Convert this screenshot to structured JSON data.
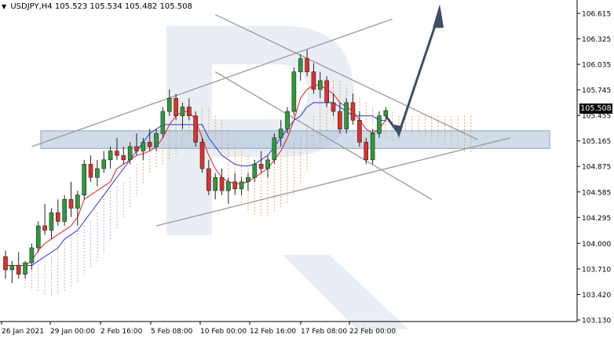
{
  "chart_data": {
    "type": "candlestick",
    "symbol": "USDJPY,H4",
    "ohlc_header": [
      "105.523",
      "105.534",
      "105.482",
      "105.508"
    ],
    "last_price": "105.508",
    "y_ticks": [
      "106.615",
      "106.325",
      "106.035",
      "105.745",
      "105.455",
      "105.165",
      "104.875",
      "104.585",
      "104.295",
      "104.000",
      "103.710",
      "103.420",
      "103.130"
    ],
    "x_ticks": [
      "26 Jan 2021",
      "29 Jan 00:00",
      "2 Feb 16:00",
      "5 Feb 08:00",
      "10 Feb 00:00",
      "12 Feb 16:00",
      "17 Feb 08:00",
      "22 Feb 00:00"
    ],
    "ylim": [
      103.13,
      106.615
    ],
    "support_zone": [
      105.08,
      105.28
    ],
    "candles": [
      [
        103.85,
        103.92,
        103.6,
        103.7
      ],
      [
        103.7,
        103.8,
        103.55,
        103.75
      ],
      [
        103.75,
        103.9,
        103.6,
        103.65
      ],
      [
        103.65,
        103.8,
        103.6,
        103.78
      ],
      [
        103.78,
        104.0,
        103.7,
        103.95
      ],
      [
        103.95,
        104.25,
        103.9,
        104.2
      ],
      [
        104.2,
        104.45,
        104.1,
        104.15
      ],
      [
        104.15,
        104.4,
        104.05,
        104.35
      ],
      [
        104.35,
        104.5,
        104.2,
        104.25
      ],
      [
        104.25,
        104.55,
        104.2,
        104.5
      ],
      [
        104.5,
        104.7,
        104.3,
        104.4
      ],
      [
        104.4,
        104.6,
        104.2,
        104.55
      ],
      [
        104.55,
        104.95,
        104.5,
        104.9
      ],
      [
        104.9,
        105.0,
        104.7,
        104.75
      ],
      [
        104.75,
        104.95,
        104.65,
        104.85
      ],
      [
        104.85,
        105.05,
        104.8,
        104.95
      ],
      [
        104.95,
        105.1,
        104.85,
        105.05
      ],
      [
        105.05,
        105.2,
        104.95,
        105.0
      ],
      [
        105.0,
        105.1,
        104.9,
        104.95
      ],
      [
        104.95,
        105.15,
        104.9,
        105.1
      ],
      [
        105.1,
        105.25,
        105.0,
        105.05
      ],
      [
        105.05,
        105.2,
        104.95,
        105.15
      ],
      [
        105.15,
        105.3,
        105.05,
        105.1
      ],
      [
        105.1,
        105.3,
        105.05,
        105.25
      ],
      [
        105.25,
        105.55,
        105.2,
        105.5
      ],
      [
        105.5,
        105.75,
        105.45,
        105.65
      ],
      [
        105.65,
        105.7,
        105.4,
        105.45
      ],
      [
        105.45,
        105.6,
        105.3,
        105.55
      ],
      [
        105.55,
        105.65,
        105.4,
        105.45
      ],
      [
        105.45,
        105.5,
        105.1,
        105.15
      ],
      [
        105.15,
        105.2,
        104.8,
        104.85
      ],
      [
        104.85,
        104.95,
        104.55,
        104.6
      ],
      [
        104.6,
        104.8,
        104.5,
        104.75
      ],
      [
        104.75,
        104.85,
        104.55,
        104.6
      ],
      [
        104.6,
        104.75,
        104.45,
        104.7
      ],
      [
        104.7,
        104.8,
        104.55,
        104.62
      ],
      [
        104.62,
        104.75,
        104.55,
        104.7
      ],
      [
        104.7,
        104.8,
        104.6,
        104.75
      ],
      [
        104.75,
        104.95,
        104.7,
        104.9
      ],
      [
        104.9,
        105.05,
        104.8,
        104.85
      ],
      [
        104.85,
        105.0,
        104.75,
        104.95
      ],
      [
        104.95,
        105.25,
        104.9,
        105.2
      ],
      [
        105.2,
        105.4,
        105.1,
        105.3
      ],
      [
        105.3,
        105.55,
        105.25,
        105.5
      ],
      [
        105.5,
        106.0,
        105.45,
        105.95
      ],
      [
        105.95,
        106.15,
        105.85,
        106.1
      ],
      [
        106.1,
        106.2,
        105.9,
        105.95
      ],
      [
        105.95,
        106.05,
        105.7,
        105.75
      ],
      [
        105.75,
        105.95,
        105.65,
        105.85
      ],
      [
        105.85,
        105.9,
        105.55,
        105.6
      ],
      [
        105.6,
        105.7,
        105.45,
        105.5
      ],
      [
        105.5,
        105.6,
        105.25,
        105.3
      ],
      [
        105.3,
        105.65,
        105.25,
        105.6
      ],
      [
        105.6,
        105.7,
        105.35,
        105.4
      ],
      [
        105.4,
        105.5,
        105.1,
        105.15
      ],
      [
        105.15,
        105.2,
        104.9,
        104.95
      ],
      [
        104.95,
        105.3,
        104.9,
        105.25
      ],
      [
        105.25,
        105.5,
        105.2,
        105.45
      ],
      [
        105.45,
        105.55,
        105.4,
        105.51
      ]
    ],
    "tenkan": [
      103.75,
      103.75,
      103.75,
      103.75,
      103.8,
      103.92,
      104.0,
      104.05,
      104.1,
      104.15,
      104.2,
      104.3,
      104.5,
      104.55,
      104.6,
      104.65,
      104.7,
      104.85,
      104.9,
      104.95,
      105.0,
      105.02,
      105.05,
      105.1,
      105.2,
      105.35,
      105.45,
      105.5,
      105.5,
      105.4,
      105.2,
      105.0,
      104.85,
      104.75,
      104.7,
      104.68,
      104.68,
      104.7,
      104.75,
      104.8,
      104.85,
      104.95,
      105.05,
      105.2,
      105.4,
      105.65,
      105.75,
      105.8,
      105.8,
      105.75,
      105.7,
      105.6,
      105.55,
      105.5,
      105.4,
      105.3,
      105.25,
      105.3,
      105.4
    ],
    "kijun": [
      103.75,
      103.75,
      103.75,
      103.75,
      103.75,
      103.8,
      103.85,
      103.9,
      103.95,
      104.05,
      104.1,
      104.15,
      104.25,
      104.35,
      104.45,
      104.55,
      104.65,
      104.75,
      104.85,
      104.95,
      105.05,
      105.15,
      105.25,
      105.3,
      105.35,
      105.35,
      105.35,
      105.35,
      105.35,
      105.35,
      105.35,
      105.2,
      105.1,
      105.0,
      104.95,
      104.9,
      104.88,
      104.88,
      104.9,
      104.95,
      105.0,
      105.1,
      105.2,
      105.3,
      105.4,
      105.45,
      105.55,
      105.6,
      105.6,
      105.6,
      105.6,
      105.55,
      105.5,
      105.45,
      105.45,
      105.45,
      105.45,
      105.4,
      105.4
    ],
    "trendlines": [
      {
        "i1": 4,
        "p1": 105.1,
        "i2": 59,
        "p2": 106.55
      },
      {
        "i1": 23,
        "p1": 104.2,
        "i2": 77,
        "p2": 105.2
      },
      {
        "i1": 32,
        "p1": 106.6,
        "i2": 72,
        "p2": 105.18
      },
      {
        "i1": 32,
        "p1": 105.95,
        "i2": 65,
        "p2": 104.5
      }
    ]
  }
}
